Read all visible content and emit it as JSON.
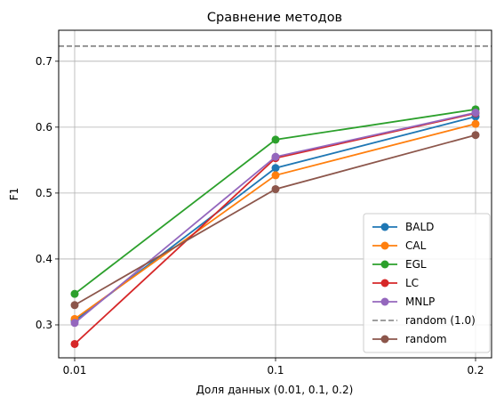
{
  "chart_data": {
    "type": "line",
    "title": "Сравнение методов",
    "xlabel": "Доля данных (0.01, 0.1, 0.2)",
    "ylabel": "F1",
    "x": [
      "0.01",
      "0.1",
      "0.2"
    ],
    "xtick_labels": [
      "0.01",
      "0.1",
      "0.2"
    ],
    "yticks": [
      0.3,
      0.4,
      0.5,
      0.6,
      0.7
    ],
    "ytick_labels": [
      "0.3",
      "0.4",
      "0.5",
      "0.6",
      "0.7"
    ],
    "ylim": [
      0.25,
      0.747
    ],
    "grid": true,
    "legend_position": "lower-right",
    "series": [
      {
        "name": "BALD",
        "color": "#1f77b4",
        "values": [
          0.306,
          0.538,
          0.616
        ]
      },
      {
        "name": "CAL",
        "color": "#ff7f0e",
        "values": [
          0.309,
          0.527,
          0.605
        ]
      },
      {
        "name": "EGL",
        "color": "#2ca02c",
        "values": [
          0.347,
          0.581,
          0.627
        ]
      },
      {
        "name": "LC",
        "color": "#d62728",
        "values": [
          0.271,
          0.553,
          0.621
        ]
      },
      {
        "name": "MNLP",
        "color": "#9467bd",
        "values": [
          0.303,
          0.555,
          0.622
        ]
      }
    ],
    "reference_line": {
      "name": "random (1.0)",
      "color": "#7f7f7f",
      "value": 0.723,
      "style": "dashed"
    },
    "random_series": {
      "name": "random",
      "color": "#8c564b",
      "values": [
        0.33,
        0.506,
        0.588
      ]
    }
  }
}
